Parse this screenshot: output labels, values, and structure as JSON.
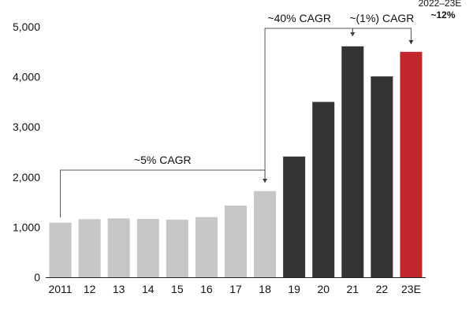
{
  "chart_data": {
    "type": "bar",
    "categories": [
      "2011",
      "12",
      "13",
      "14",
      "15",
      "16",
      "17",
      "18",
      "19",
      "20",
      "21",
      "22",
      "23E"
    ],
    "values": [
      1090,
      1160,
      1175,
      1165,
      1150,
      1200,
      1430,
      1720,
      2410,
      3500,
      4610,
      4010,
      4500
    ],
    "bar_colors": [
      "#c6c6c6",
      "#c6c6c6",
      "#c6c6c6",
      "#c6c6c6",
      "#c6c6c6",
      "#c6c6c6",
      "#c6c6c6",
      "#c6c6c6",
      "#333333",
      "#333333",
      "#333333",
      "#333333",
      "#c0262c"
    ],
    "ylim": [
      0,
      5000
    ],
    "yticks": [
      0,
      1000,
      2000,
      3000,
      4000,
      5000
    ],
    "ytick_labels": [
      "0",
      "1,000",
      "2,000",
      "3,000",
      "4,000",
      "5,000"
    ],
    "grid": false,
    "title": "",
    "xlabel": "",
    "ylabel": "",
    "annotations": [
      {
        "label": "~5% CAGR",
        "from": "2011",
        "to": "18"
      },
      {
        "label": "~40% CAGR",
        "from": "18",
        "to": "21"
      },
      {
        "label": "~(1%) CAGR",
        "from": "21",
        "to": "23E"
      }
    ],
    "corner_note": {
      "line1": "2022–23E",
      "line2": "~12%"
    }
  }
}
